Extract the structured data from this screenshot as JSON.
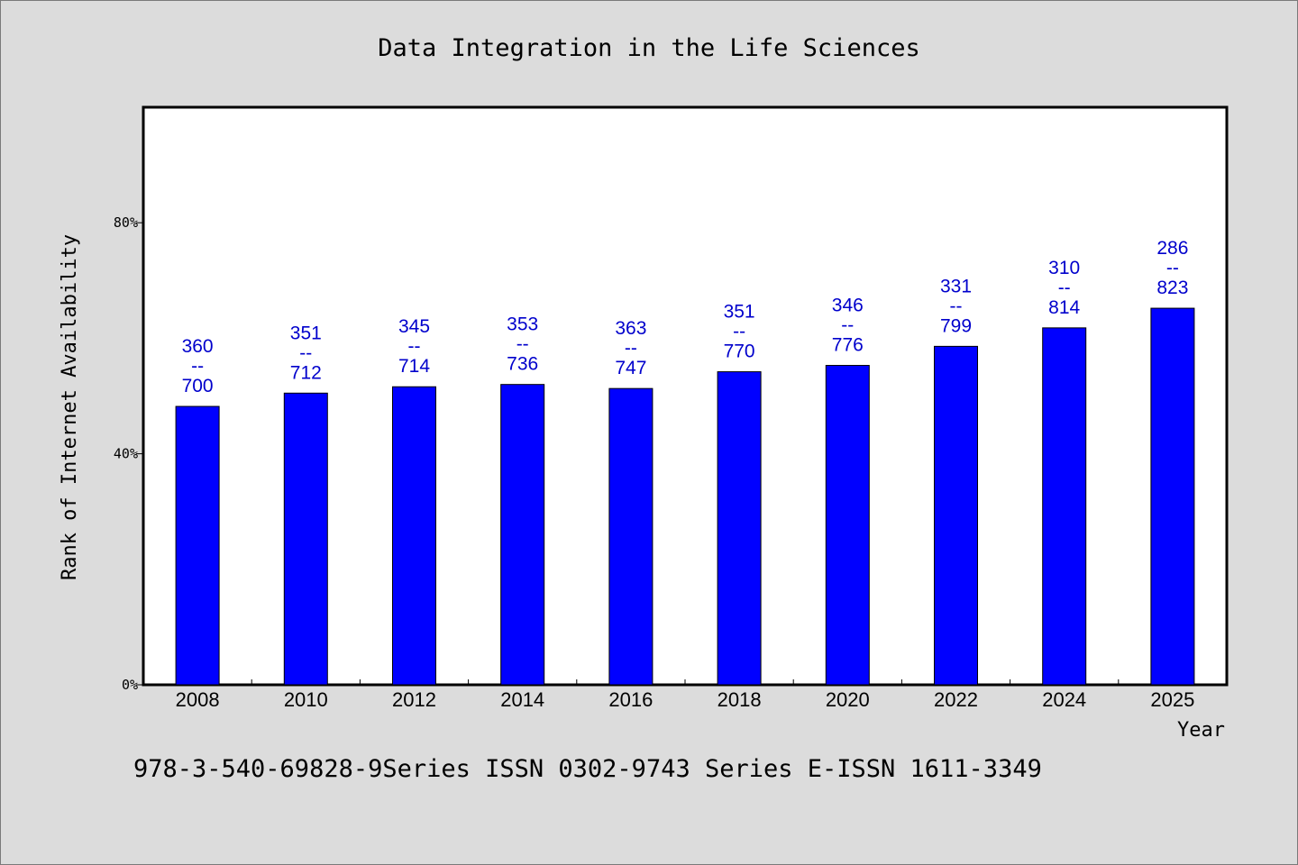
{
  "chart_data": {
    "type": "bar",
    "title": "Data Integration in the Life Sciences",
    "xlabel": "Year",
    "ylabel": "Rank of Internet Availability",
    "categories": [
      "2008",
      "2010",
      "2012",
      "2014",
      "2016",
      "2018",
      "2020",
      "2022",
      "2024",
      "2025"
    ],
    "series": [
      {
        "values": [
          48.2,
          50.5,
          51.6,
          52.0,
          51.3,
          54.2,
          55.3,
          58.6,
          61.8,
          65.2
        ],
        "data_labels": [
          [
            "360",
            "--",
            "700"
          ],
          [
            "351",
            "--",
            "712"
          ],
          [
            "345",
            "--",
            "714"
          ],
          [
            "353",
            "--",
            "736"
          ],
          [
            "363",
            "--",
            "747"
          ],
          [
            "351",
            "--",
            "770"
          ],
          [
            "346",
            "--",
            "776"
          ],
          [
            "331",
            "--",
            "799"
          ],
          [
            "310",
            "--",
            "814"
          ],
          [
            "286",
            "--",
            "823"
          ]
        ]
      }
    ],
    "ylim": [
      0,
      100
    ],
    "yticks": [
      0,
      40,
      80
    ],
    "ytick_labels": [
      "0%",
      "40%",
      "80%"
    ],
    "grid": false,
    "bar_color": "#0000ff",
    "label_color": "#0000cc",
    "footnote": "978-3-540-69828-9Series ISSN 0302-9743 Series E-ISSN 1611-3349"
  }
}
